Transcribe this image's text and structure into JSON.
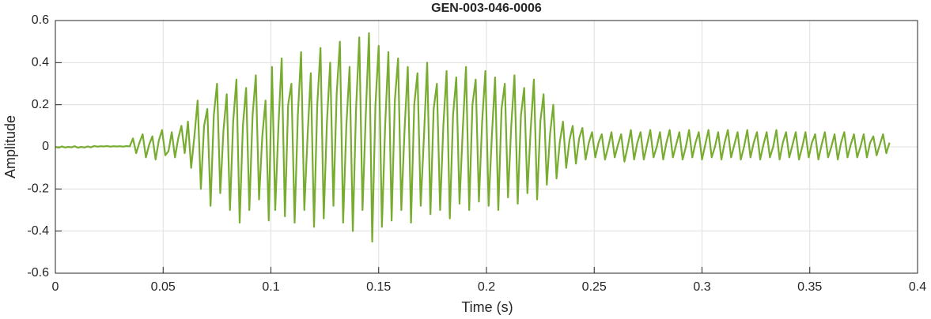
{
  "chart_data": {
    "type": "line",
    "title": "GEN-003-046-0006",
    "xlabel": "Time (s)",
    "ylabel": "Amplitude",
    "color": "#77ac30",
    "grid": true,
    "xlim": [
      0,
      0.4
    ],
    "xticks": [
      0,
      0.05,
      0.1,
      0.15,
      0.2,
      0.25,
      0.3,
      0.35,
      0.4
    ],
    "ylim": [
      -0.6,
      0.6
    ],
    "yticks": [
      -0.6,
      -0.4,
      -0.2,
      0,
      0.2,
      0.4,
      0.6
    ],
    "x": [
      0,
      0.0015,
      0.003,
      0.0045,
      0.006,
      0.0075,
      0.009,
      0.0105,
      0.012,
      0.0135,
      0.015,
      0.0165,
      0.018,
      0.0195,
      0.021,
      0.0225,
      0.024,
      0.0255,
      0.027,
      0.0285,
      0.03,
      0.0315,
      0.033,
      0.0345,
      0.036,
      0.0375,
      0.039,
      0.0405,
      0.042,
      0.0435,
      0.045,
      0.0465,
      0.048,
      0.0495,
      0.051,
      0.0525,
      0.054,
      0.0555,
      0.057,
      0.0585,
      0.06,
      0.0615,
      0.063,
      0.0645,
      0.066,
      0.0675,
      0.069,
      0.0705,
      0.072,
      0.0735,
      0.075,
      0.0765,
      0.078,
      0.0795,
      0.081,
      0.0825,
      0.084,
      0.0855,
      0.087,
      0.0885,
      0.09,
      0.0915,
      0.093,
      0.0945,
      0.096,
      0.0975,
      0.099,
      0.1005,
      0.102,
      0.1035,
      0.105,
      0.1065,
      0.108,
      0.1095,
      0.111,
      0.1125,
      0.114,
      0.1155,
      0.117,
      0.1185,
      0.12,
      0.1215,
      0.123,
      0.1245,
      0.126,
      0.1275,
      0.129,
      0.1305,
      0.132,
      0.1335,
      0.135,
      0.1365,
      0.138,
      0.1395,
      0.141,
      0.1425,
      0.144,
      0.1455,
      0.147,
      0.1485,
      0.15,
      0.1515,
      0.153,
      0.1545,
      0.156,
      0.1575,
      0.159,
      0.1605,
      0.162,
      0.1635,
      0.165,
      0.1665,
      0.168,
      0.1695,
      0.171,
      0.1725,
      0.174,
      0.1755,
      0.177,
      0.1785,
      0.18,
      0.1815,
      0.183,
      0.1845,
      0.186,
      0.1875,
      0.189,
      0.1905,
      0.192,
      0.1935,
      0.195,
      0.1965,
      0.198,
      0.1995,
      0.201,
      0.2025,
      0.204,
      0.2055,
      0.207,
      0.2085,
      0.21,
      0.2115,
      0.213,
      0.2145,
      0.216,
      0.2175,
      0.219,
      0.2205,
      0.222,
      0.2235,
      0.225,
      0.2265,
      0.228,
      0.2295,
      0.231,
      0.2325,
      0.234,
      0.2355,
      0.237,
      0.2385,
      0.24,
      0.2415,
      0.243,
      0.2445,
      0.246,
      0.2475,
      0.249,
      0.2505,
      0.252,
      0.2535,
      0.255,
      0.2565,
      0.258,
      0.2595,
      0.261,
      0.2625,
      0.264,
      0.2655,
      0.267,
      0.2685,
      0.27,
      0.2715,
      0.273,
      0.2745,
      0.276,
      0.2775,
      0.279,
      0.2805,
      0.282,
      0.2835,
      0.285,
      0.2865,
      0.288,
      0.2895,
      0.291,
      0.2925,
      0.294,
      0.2955,
      0.297,
      0.2985,
      0.3,
      0.3015,
      0.303,
      0.3045,
      0.306,
      0.3075,
      0.309,
      0.3105,
      0.312,
      0.3135,
      0.315,
      0.3165,
      0.318,
      0.3195,
      0.321,
      0.3225,
      0.324,
      0.3255,
      0.327,
      0.3285,
      0.33,
      0.3315,
      0.333,
      0.3345,
      0.336,
      0.3375,
      0.339,
      0.3405,
      0.342,
      0.3435,
      0.345,
      0.3465,
      0.348,
      0.3495,
      0.351,
      0.3525,
      0.354,
      0.3555,
      0.357,
      0.3585,
      0.36,
      0.3615,
      0.363,
      0.3645,
      0.366,
      0.3675,
      0.369,
      0.3705,
      0.372,
      0.3735,
      0.375,
      0.3765,
      0.378,
      0.3795,
      0.381,
      0.3825,
      0.384,
      0.3855,
      0.387
    ],
    "values": [
      0,
      -0.004,
      0.002,
      -0.003,
      0,
      -0.002,
      0.003,
      -0.004,
      0,
      -0.003,
      0.002,
      -0.002,
      0.004,
      0.001,
      0.003,
      0.002,
      0.004,
      0.001,
      0.003,
      0.002,
      0.003,
      0.001,
      0.004,
      0.002,
      0.04,
      -0.03,
      0.02,
      0.06,
      -0.05,
      0.01,
      0.05,
      -0.06,
      0.03,
      0.08,
      -0.04,
      -0.02,
      0.07,
      -0.05,
      0.04,
      0.1,
      -0.03,
      0.12,
      -0.1,
      0.05,
      0.22,
      -0.2,
      0.1,
      0.18,
      -0.28,
      0.15,
      0.3,
      -0.22,
      0.08,
      0.25,
      -0.3,
      0.12,
      0.32,
      -0.36,
      0.1,
      0.28,
      -0.3,
      0.15,
      0.34,
      -0.25,
      0.05,
      0.22,
      -0.35,
      0.38,
      -0.3,
      0.1,
      0.42,
      -0.33,
      0.2,
      0.3,
      -0.36,
      0.15,
      0.45,
      -0.3,
      0.05,
      0.35,
      -0.38,
      0.2,
      0.47,
      -0.34,
      0.12,
      0.4,
      -0.28,
      0.25,
      0.5,
      -0.36,
      0.1,
      0.38,
      -0.4,
      0.18,
      0.52,
      -0.3,
      0.15,
      0.54,
      -0.45,
      0.2,
      0.48,
      -0.38,
      0.1,
      0.45,
      -0.35,
      0.22,
      0.42,
      -0.3,
      0.08,
      0.38,
      -0.36,
      0.2,
      0.35,
      -0.28,
      0.05,
      0.4,
      -0.32,
      0.18,
      0.3,
      -0.3,
      0.1,
      0.36,
      -0.34,
      0.15,
      0.33,
      -0.27,
      0.08,
      0.38,
      -0.3,
      0.2,
      0.32,
      -0.26,
      0.12,
      0.36,
      -0.28,
      0.05,
      0.33,
      -0.3,
      0.18,
      0.3,
      -0.24,
      0.1,
      0.34,
      -0.27,
      0.15,
      0.28,
      -0.22,
      0.08,
      0.32,
      -0.25,
      0.12,
      0.25,
      -0.18,
      0.06,
      0.2,
      -0.15,
      0.02,
      0.12,
      -0.1,
      0.03,
      0.1,
      -0.08,
      0.04,
      0.09,
      -0.06,
      0.02,
      0.07,
      -0.05,
      0.02,
      0.06,
      -0.06,
      0,
      0.07,
      -0.05,
      0.01,
      0.06,
      -0.07,
      0,
      0.08,
      -0.06,
      0.02,
      0.07,
      -0.06,
      0.01,
      0.08,
      -0.05,
      0,
      0.07,
      -0.06,
      0.02,
      0.08,
      -0.05,
      0.01,
      0.07,
      -0.06,
      0,
      0.08,
      -0.05,
      0.02,
      0.07,
      -0.06,
      0.01,
      0.08,
      -0.05,
      0,
      0.07,
      -0.06,
      0.02,
      0.08,
      -0.05,
      0.01,
      0.07,
      -0.06,
      0,
      0.08,
      -0.05,
      0.02,
      0.07,
      -0.06,
      0.01,
      0.07,
      -0.05,
      0,
      0.08,
      -0.06,
      0.02,
      0.07,
      -0.05,
      0.01,
      0.07,
      -0.06,
      0,
      0.07,
      -0.05,
      0.02,
      0.06,
      -0.06,
      0.01,
      0.07,
      -0.05,
      0,
      0.06,
      -0.06,
      0.02,
      0.07,
      -0.05,
      0.01,
      0.06,
      -0.05,
      0,
      0.06,
      -0.05,
      0.02,
      0.05,
      -0.04,
      0.01,
      0.06,
      -0.03,
      0.02
    ]
  }
}
